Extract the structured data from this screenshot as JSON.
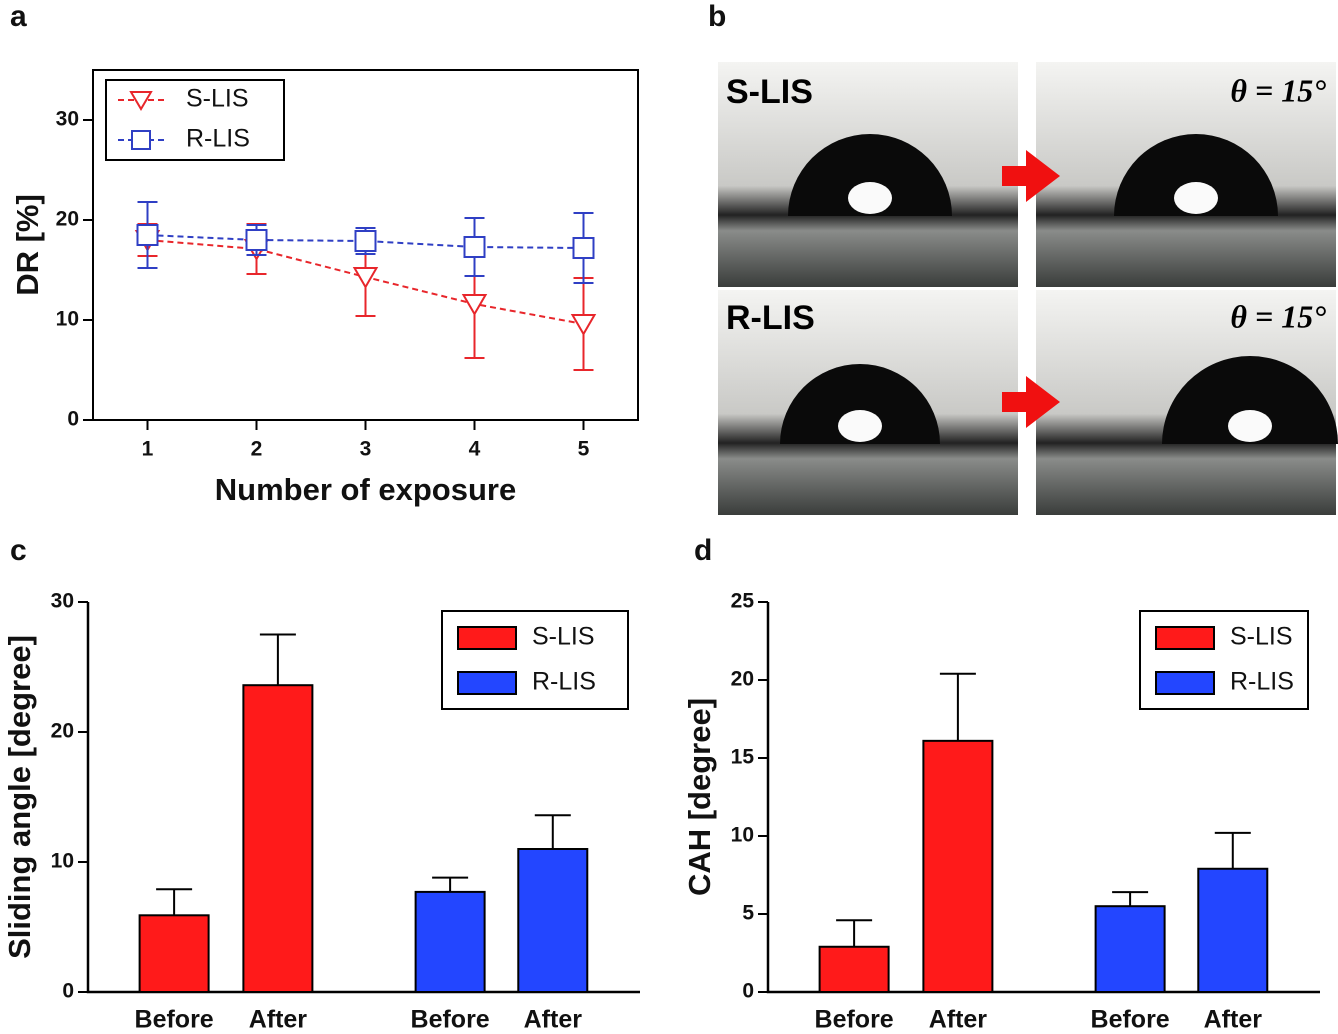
{
  "chart_data": [
    {
      "type": "line",
      "panel": "a",
      "ylabel": "DR [%]",
      "xlabel": "Number of exposure",
      "x": [
        1,
        2,
        3,
        4,
        5
      ],
      "xlim": [
        0.5,
        5.5
      ],
      "xticks": [
        1,
        2,
        3,
        4,
        5
      ],
      "ylim": [
        0,
        35
      ],
      "yticks": [
        0,
        10,
        20,
        30
      ],
      "legend": "upper left",
      "series": [
        {
          "name": "S-LIS",
          "color": "#e8262b",
          "marker": "triangle-down",
          "values": [
            18.0,
            17.1,
            14.3,
            11.6,
            9.6
          ],
          "errors": [
            1.6,
            2.5,
            3.9,
            5.4,
            4.6
          ]
        },
        {
          "name": "R-LIS",
          "color": "#2f3fc4",
          "marker": "square",
          "values": [
            18.5,
            18.0,
            17.9,
            17.3,
            17.2
          ],
          "errors": [
            3.3,
            1.5,
            1.3,
            2.9,
            3.5
          ]
        }
      ]
    },
    {
      "type": "bar",
      "panel": "c",
      "ylabel": "Sliding angle [degree]",
      "categories": [
        "Before",
        "After",
        "Before",
        "After"
      ],
      "ylim": [
        0,
        30
      ],
      "yticks": [
        0,
        10,
        20,
        30
      ],
      "legend": "upper right",
      "series": [
        {
          "name": "S-LIS",
          "color": "#ff1a1a",
          "values": [
            5.9,
            23.6,
            null,
            null
          ],
          "errors": [
            2.0,
            3.9,
            null,
            null
          ]
        },
        {
          "name": "R-LIS",
          "color": "#2346ff",
          "values": [
            null,
            null,
            7.7,
            11.0
          ],
          "errors": [
            null,
            null,
            1.1,
            2.6
          ]
        }
      ]
    },
    {
      "type": "bar",
      "panel": "d",
      "ylabel": "CAH [degree]",
      "categories": [
        "Before",
        "After",
        "Before",
        "After"
      ],
      "ylim": [
        0,
        25
      ],
      "yticks": [
        0,
        5,
        10,
        15,
        20,
        25
      ],
      "legend": "upper right",
      "series": [
        {
          "name": "S-LIS",
          "color": "#ff1a1a",
          "values": [
            2.9,
            16.1,
            null,
            null
          ],
          "errors": [
            1.7,
            4.3,
            null,
            null
          ]
        },
        {
          "name": "R-LIS",
          "color": "#2346ff",
          "values": [
            null,
            null,
            5.5,
            7.9
          ],
          "errors": [
            null,
            null,
            0.9,
            2.3
          ]
        }
      ]
    }
  ],
  "photos": {
    "panel": "b",
    "surfaces": [
      "S-LIS",
      "R-LIS"
    ],
    "angle_labels": [
      "θ = 15°",
      "θ = 15°"
    ]
  }
}
